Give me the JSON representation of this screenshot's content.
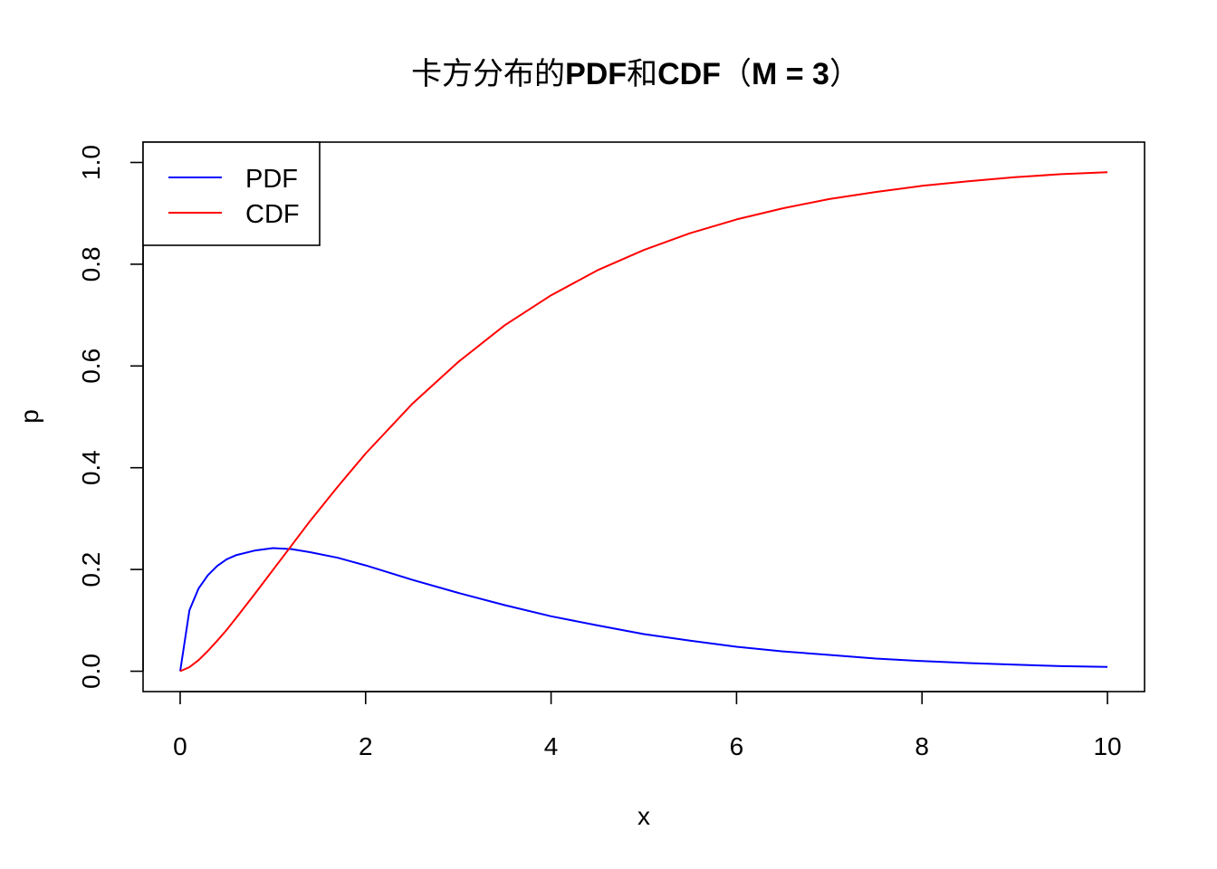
{
  "chart_data": {
    "type": "line",
    "title_parts": [
      "卡方分布的",
      "PDF",
      "和",
      "CDF",
      "（",
      "M = 3",
      "）"
    ],
    "xlabel": "x",
    "ylabel": "p",
    "xlim": [
      -0.4,
      10.4
    ],
    "ylim": [
      -0.04,
      1.04
    ],
    "x_ticks": [
      0,
      2,
      4,
      6,
      8,
      10
    ],
    "y_ticks": [
      0.0,
      0.2,
      0.4,
      0.6,
      0.8,
      1.0
    ],
    "x_tick_labels": [
      "0",
      "2",
      "4",
      "6",
      "8",
      "10"
    ],
    "y_tick_labels": [
      "0.0",
      "0.2",
      "0.4",
      "0.6",
      "0.8",
      "1.0"
    ],
    "legend_position": "top-left",
    "grid": false,
    "series": [
      {
        "name": "PDF",
        "color": "#0000ff",
        "x": [
          0,
          0.1,
          0.2,
          0.3,
          0.4,
          0.5,
          0.6,
          0.8,
          1.0,
          1.2,
          1.4,
          1.7,
          2.0,
          2.5,
          3.0,
          3.5,
          4.0,
          4.5,
          5.0,
          5.5,
          6.0,
          6.5,
          7.0,
          7.5,
          8.0,
          8.5,
          9.0,
          9.5,
          10.0
        ],
        "values": [
          0,
          0.12,
          0.163,
          0.189,
          0.207,
          0.22,
          0.228,
          0.237,
          0.242,
          0.24,
          0.234,
          0.223,
          0.208,
          0.18,
          0.154,
          0.13,
          0.108,
          0.09,
          0.073,
          0.06,
          0.048,
          0.039,
          0.032,
          0.025,
          0.02,
          0.016,
          0.013,
          0.01,
          0.0085
        ]
      },
      {
        "name": "CDF",
        "color": "#ff0000",
        "x": [
          0,
          0.1,
          0.2,
          0.3,
          0.4,
          0.5,
          0.6,
          0.8,
          1.0,
          1.2,
          1.4,
          1.7,
          2.0,
          2.5,
          3.0,
          3.5,
          4.0,
          4.5,
          5.0,
          5.5,
          6.0,
          6.5,
          7.0,
          7.5,
          8.0,
          8.5,
          9.0,
          9.5,
          10.0
        ],
        "values": [
          0,
          0.008,
          0.022,
          0.04,
          0.06,
          0.081,
          0.104,
          0.151,
          0.199,
          0.247,
          0.295,
          0.363,
          0.428,
          0.525,
          0.608,
          0.68,
          0.739,
          0.788,
          0.828,
          0.861,
          0.888,
          0.91,
          0.928,
          0.942,
          0.954,
          0.963,
          0.971,
          0.977,
          0.981
        ]
      }
    ]
  }
}
